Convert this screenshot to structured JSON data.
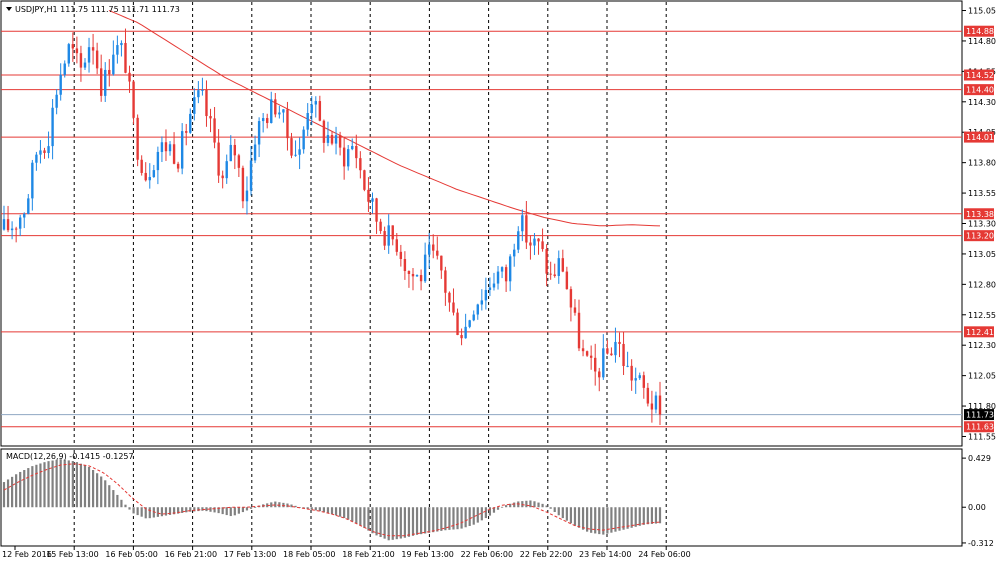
{
  "header": {
    "symbol_label": "USDJPY,H1  111.75 111.75 111.71 111.73",
    "menu_icon": "triangle-down-icon"
  },
  "macd_header": {
    "label": "MACD(12,26,9) -0.1415 -0.1257"
  },
  "colors": {
    "bull": "#1e88e5",
    "bear": "#e53935",
    "level_line": "#e53935",
    "ma_line": "#e53935",
    "macd_hist": "#808080",
    "signal_line": "#e53935",
    "current_price_line": "#8fa7c2",
    "grid": "#000000"
  },
  "chart_data": [
    {
      "type": "candlestick",
      "symbol": "USDJPY",
      "timeframe": "H1",
      "ylim": [
        111.48,
        115.12
      ],
      "y_ticks": [
        "115.05",
        "114.80",
        "114.55",
        "114.30",
        "114.05",
        "113.80",
        "113.55",
        "113.30",
        "113.05",
        "112.80",
        "112.55",
        "112.30",
        "112.05",
        "111.80",
        "111.55"
      ],
      "x_ticks": [
        "12 Feb 2016",
        "15 Feb 13:00",
        "16 Feb 05:00",
        "16 Feb 21:00",
        "17 Feb 13:00",
        "18 Feb 05:00",
        "18 Feb 21:00",
        "19 Feb 13:00",
        "22 Feb 06:00",
        "22 Feb 22:00",
        "23 Feb 14:00",
        "24 Feb 06:00"
      ],
      "horizontal_levels": [
        114.88,
        114.52,
        114.4,
        114.01,
        113.38,
        113.2,
        112.41,
        111.63
      ],
      "horizontal_level_labels": [
        "114.88",
        "114.52",
        "114.40",
        "114.01",
        "113.38",
        "113.20",
        "112.41",
        "111.63"
      ],
      "current_price": 111.73,
      "current_price_label": "111.73",
      "close_path": [
        113.25,
        113.3,
        113.45,
        113.9,
        114.0,
        114.5,
        114.75,
        114.55,
        114.85,
        114.4,
        114.75,
        114.7,
        114.0,
        113.7,
        113.9,
        113.95,
        113.85,
        114.2,
        114.35,
        114.05,
        113.65,
        113.95,
        113.5,
        114.05,
        114.2,
        114.3,
        114.0,
        113.85,
        114.4,
        114.05,
        114.0,
        113.85,
        113.95,
        113.6,
        113.35,
        113.2,
        113.15,
        112.9,
        112.85,
        113.05,
        112.9,
        112.55,
        112.4,
        112.65,
        112.75,
        112.9,
        112.85,
        113.35,
        113.15,
        113.1,
        112.85,
        113.0,
        112.55,
        112.2,
        112.05,
        112.2,
        112.35,
        112.1,
        112.0,
        111.85,
        111.75
      ],
      "ma_path": [
        115.05,
        114.95,
        114.8,
        114.65,
        114.5,
        114.38,
        114.26,
        114.14,
        114.02,
        113.9,
        113.78,
        113.68,
        113.58,
        113.5,
        113.42,
        113.35,
        113.3,
        113.28,
        113.29,
        113.28
      ],
      "ma_period": 200
    },
    {
      "type": "macd",
      "label": "MACD(12,26,9) -0.1415 -0.1257",
      "params": [
        12,
        26,
        9
      ],
      "macd_value": -0.1415,
      "signal_value": -0.1257,
      "ylim": [
        -0.33,
        0.5
      ],
      "y_ticks": [
        "0.429",
        "0.00",
        "-0.312"
      ],
      "hist_path": [
        0.22,
        0.3,
        0.36,
        0.4,
        0.42,
        0.4,
        0.35,
        0.25,
        0.1,
        -0.05,
        -0.1,
        -0.08,
        -0.06,
        -0.04,
        -0.03,
        -0.05,
        -0.08,
        -0.03,
        0.02,
        0.05,
        0.03,
        -0.01,
        -0.03,
        -0.06,
        -0.1,
        -0.16,
        -0.24,
        -0.29,
        -0.27,
        -0.24,
        -0.22,
        -0.2,
        -0.19,
        -0.15,
        -0.08,
        0.01,
        0.05,
        0.06,
        0.02,
        -0.08,
        -0.16,
        -0.22,
        -0.24,
        -0.21,
        -0.18,
        -0.15,
        -0.14
      ],
      "signal_path": [
        0.15,
        0.22,
        0.28,
        0.33,
        0.37,
        0.38,
        0.36,
        0.3,
        0.2,
        0.08,
        -0.02,
        -0.06,
        -0.05,
        -0.03,
        -0.02,
        -0.01,
        0.0,
        0.0,
        0.01,
        0.02,
        0.01,
        -0.01,
        -0.03,
        -0.06,
        -0.1,
        -0.16,
        -0.22,
        -0.25,
        -0.25,
        -0.23,
        -0.21,
        -0.18,
        -0.14,
        -0.08,
        -0.02,
        0.02,
        0.03,
        0.01,
        -0.04,
        -0.1,
        -0.16,
        -0.19,
        -0.2,
        -0.18,
        -0.16,
        -0.14,
        -0.13
      ]
    }
  ]
}
